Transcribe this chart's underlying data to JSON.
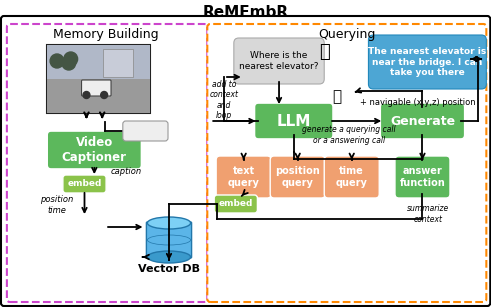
{
  "title": "ReMEmbR",
  "bg_color": "#ffffff",
  "memory_label": "Memory Building",
  "query_label": "Querying",
  "green": "#5cb85c",
  "light_green": "#8bc34a",
  "orange": "#f0a070",
  "blue_bubble": "#4da6d4",
  "gray_bubble": "#d8d8d8",
  "prompt_bg": "#eeeeee",
  "black": "#000000",
  "white": "#ffffff",
  "magenta": "#cc44cc",
  "orange_border": "#ff8800",
  "answer_green": "#5cb85c"
}
